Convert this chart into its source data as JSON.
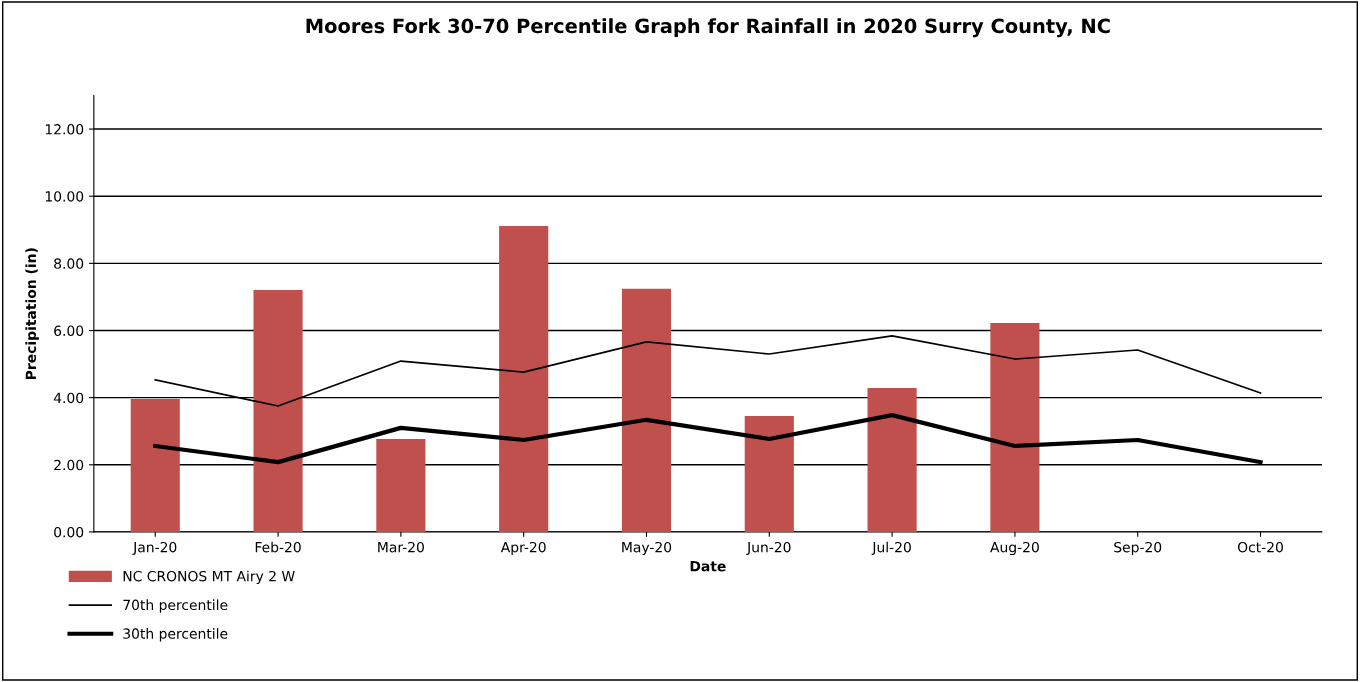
{
  "chart_data": {
    "type": "bar",
    "title": "Moores Fork 30-70 Percentile Graph for Rainfall in 2020 Surry County, NC",
    "xlabel": "Date",
    "ylabel": "Precipitation (in)",
    "categories": [
      "Jan-20",
      "Feb-20",
      "Mar-20",
      "Apr-20",
      "May-20",
      "Jun-20",
      "Jul-20",
      "Aug-20",
      "Sep-20",
      "Oct-20"
    ],
    "series": [
      {
        "name": "NC CRONOS MT Airy 2 W",
        "color": "#c0504d",
        "values": [
          3.96,
          7.21,
          2.77,
          9.11,
          7.24,
          3.45,
          4.29,
          6.22,
          null,
          null
        ]
      },
      {
        "name": "70th percentile",
        "type": "line",
        "color": "#000000",
        "values": [
          4.53,
          3.75,
          5.09,
          4.76,
          5.66,
          5.3,
          5.84,
          5.15,
          5.42,
          4.14
        ]
      },
      {
        "name": "30th percentile",
        "type": "line",
        "color": "#000000",
        "values": [
          2.56,
          2.08,
          3.1,
          2.74,
          3.34,
          2.77,
          3.48,
          2.56,
          2.74,
          2.08
        ]
      }
    ],
    "ylim": [
      0,
      13
    ],
    "yticks": [
      {
        "value": 0,
        "label": "0.00"
      },
      {
        "value": 2,
        "label": "2.00"
      },
      {
        "value": 4,
        "label": "4.00"
      },
      {
        "value": 6,
        "label": "6.00"
      },
      {
        "value": 8,
        "label": "8.00"
      },
      {
        "value": 10,
        "label": "10.00"
      },
      {
        "value": 12,
        "label": "12.00"
      }
    ],
    "grid": "y",
    "legend": "bottom left",
    "marker": "none",
    "line_style": "solid"
  }
}
